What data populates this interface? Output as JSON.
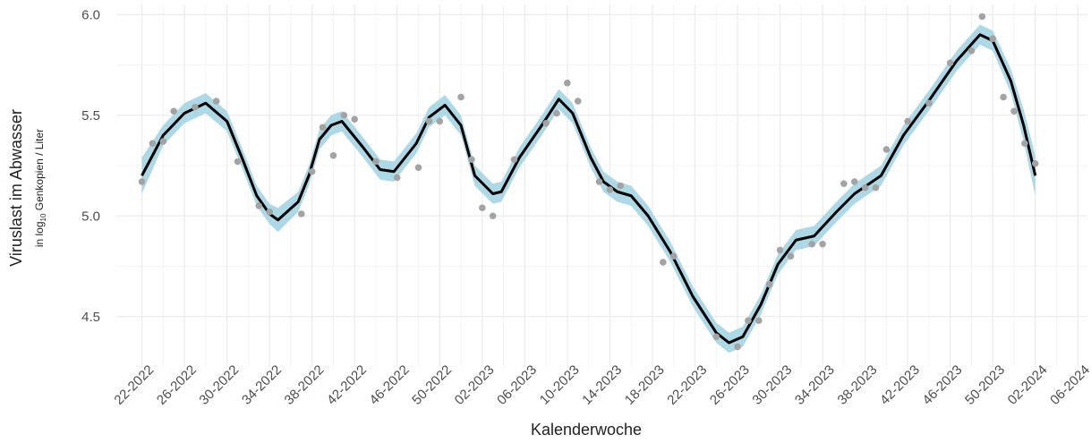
{
  "chart_data": {
    "type": "scatter",
    "y_label": "Viruslast im Abwasser",
    "y_sublabel": [
      "in log",
      "10",
      " Genkopien / Liter"
    ],
    "x_label": "Kalenderwoche",
    "xlim": [
      -2.4,
      88.9
    ],
    "ylim": [
      4.25,
      6.05
    ],
    "xticks": [
      {
        "value": 0,
        "label": "22-2022"
      },
      {
        "value": 4,
        "label": "26-2022"
      },
      {
        "value": 8,
        "label": "30-2022"
      },
      {
        "value": 12,
        "label": "34-2022"
      },
      {
        "value": 16,
        "label": "38-2022"
      },
      {
        "value": 20,
        "label": "42-2022"
      },
      {
        "value": 24,
        "label": "46-2022"
      },
      {
        "value": 28,
        "label": "50-2022"
      },
      {
        "value": 32,
        "label": "02-2023"
      },
      {
        "value": 36,
        "label": "06-2023"
      },
      {
        "value": 40,
        "label": "10-2023"
      },
      {
        "value": 44,
        "label": "14-2023"
      },
      {
        "value": 48,
        "label": "18-2023"
      },
      {
        "value": 52,
        "label": "22-2023"
      },
      {
        "value": 56,
        "label": "26-2023"
      },
      {
        "value": 60,
        "label": "30-2023"
      },
      {
        "value": 64,
        "label": "34-2023"
      },
      {
        "value": 68,
        "label": "38-2023"
      },
      {
        "value": 72,
        "label": "42-2023"
      },
      {
        "value": 76,
        "label": "46-2023"
      },
      {
        "value": 80,
        "label": "50-2023"
      },
      {
        "value": 84,
        "label": "02-2024"
      },
      {
        "value": 88,
        "label": "06-2024"
      }
    ],
    "yticks": [
      4.5,
      {
        "value": 5,
        "label": "5.0"
      },
      5.5,
      {
        "value": 6,
        "label": "6.0"
      }
    ],
    "grid": true,
    "series": [
      {
        "type": "scatter",
        "color": "#a3a3a3",
        "x": [
          0,
          1,
          2,
          3,
          5,
          7,
          9,
          11,
          12,
          15,
          16,
          17,
          18,
          19,
          20,
          22,
          24,
          26,
          27,
          28,
          30,
          31,
          32,
          33,
          35,
          38,
          39,
          40,
          41,
          43,
          44,
          45,
          49,
          50,
          54,
          56,
          57,
          58,
          59,
          60,
          61,
          63,
          64,
          66,
          67,
          68,
          69,
          70,
          72,
          74,
          76,
          78,
          79,
          80,
          81,
          82,
          83,
          84
        ],
        "values": [
          5.17,
          5.36,
          5.37,
          5.52,
          5.54,
          5.57,
          5.27,
          5.05,
          5.02,
          5.01,
          5.22,
          5.44,
          5.3,
          5.5,
          5.48,
          5.27,
          5.19,
          5.24,
          5.47,
          5.47,
          5.59,
          5.28,
          5.04,
          5.0,
          5.28,
          5.46,
          5.51,
          5.66,
          5.57,
          5.17,
          5.13,
          5.15,
          4.77,
          4.8,
          4.4,
          4.35,
          4.48,
          4.48,
          4.66,
          4.83,
          4.8,
          4.86,
          4.86,
          5.16,
          5.17,
          5.14,
          5.14,
          5.33,
          5.47,
          5.56,
          5.76,
          5.82,
          5.99,
          5.88,
          5.59,
          5.52,
          5.36,
          5.26
        ]
      },
      {
        "type": "line",
        "color": "#000000",
        "band_color": "#add8e6",
        "x": [
          0,
          2,
          4,
          6,
          8,
          9.4,
          10.8,
          12,
          12.8,
          14.7,
          15.7,
          16.7,
          17.8,
          18.8,
          20.8,
          22.4,
          23.7,
          25.8,
          27,
          28.5,
          30,
          31.3,
          33,
          33.8,
          35.5,
          37.6,
          39.2,
          40.5,
          42.2,
          43.4,
          44.7,
          46,
          47.6,
          49.7,
          51.8,
          54,
          55.2,
          56.5,
          58.2,
          59.8,
          61.5,
          63.2,
          65.3,
          67,
          69.5,
          71.6,
          74.1,
          76.6,
          78.8,
          80,
          81.7,
          82.9,
          84
        ],
        "values": [
          5.2,
          5.4,
          5.51,
          5.56,
          5.47,
          5.29,
          5.1,
          5.01,
          4.98,
          5.07,
          5.2,
          5.38,
          5.45,
          5.47,
          5.34,
          5.23,
          5.22,
          5.36,
          5.49,
          5.55,
          5.45,
          5.2,
          5.11,
          5.12,
          5.29,
          5.45,
          5.58,
          5.51,
          5.29,
          5.17,
          5.12,
          5.1,
          5.0,
          4.82,
          4.6,
          4.42,
          4.37,
          4.4,
          4.56,
          4.76,
          4.88,
          4.9,
          5.02,
          5.11,
          5.2,
          5.4,
          5.58,
          5.77,
          5.9,
          5.87,
          5.67,
          5.45,
          5.2
        ],
        "upper": [
          5.29,
          5.45,
          5.56,
          5.61,
          5.52,
          5.34,
          5.15,
          5.06,
          5.04,
          5.12,
          5.25,
          5.43,
          5.5,
          5.52,
          5.39,
          5.28,
          5.27,
          5.41,
          5.54,
          5.6,
          5.5,
          5.25,
          5.16,
          5.17,
          5.34,
          5.5,
          5.63,
          5.56,
          5.34,
          5.22,
          5.17,
          5.15,
          5.05,
          4.87,
          4.65,
          4.47,
          4.42,
          4.45,
          4.61,
          4.81,
          4.93,
          4.95,
          5.07,
          5.16,
          5.25,
          5.45,
          5.63,
          5.82,
          5.95,
          5.92,
          5.73,
          5.53,
          5.3
        ],
        "lower": [
          5.11,
          5.35,
          5.46,
          5.51,
          5.42,
          5.24,
          5.05,
          4.96,
          4.92,
          5.02,
          5.15,
          5.33,
          5.4,
          5.42,
          5.29,
          5.18,
          5.17,
          5.31,
          5.44,
          5.5,
          5.4,
          5.15,
          5.06,
          5.07,
          5.24,
          5.4,
          5.53,
          5.46,
          5.24,
          5.12,
          5.07,
          5.05,
          4.95,
          4.77,
          4.55,
          4.37,
          4.32,
          4.35,
          4.51,
          4.71,
          4.83,
          4.85,
          4.97,
          5.06,
          5.15,
          5.35,
          5.53,
          5.72,
          5.85,
          5.82,
          5.61,
          5.37,
          5.1
        ]
      }
    ]
  }
}
